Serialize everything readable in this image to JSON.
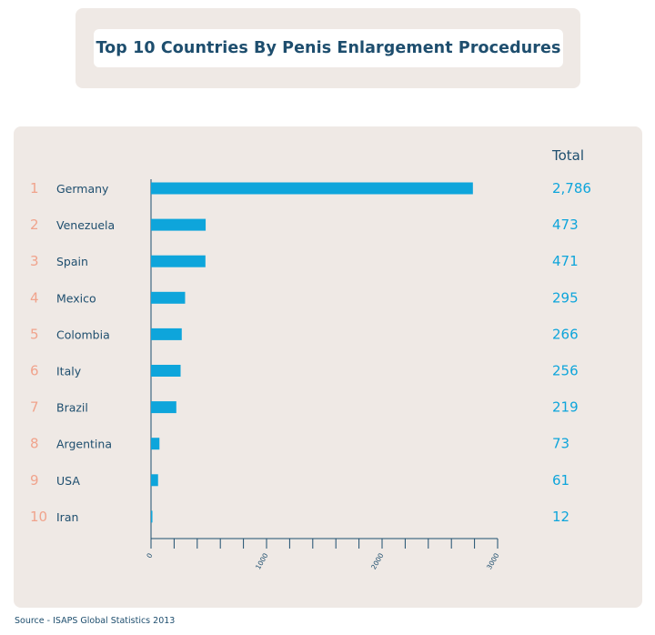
{
  "title": "Top 10 Countries By Penis Enlargement Procedures",
  "source": "Source - ISAPS Global Statistics 2013",
  "colors": {
    "bar": "#0ea5db",
    "rank": "#f0a38c",
    "label": "#1e4e6e",
    "value": "#0ea5db",
    "panel": "#efe9e5"
  },
  "chart_data": {
    "type": "bar",
    "orientation": "horizontal",
    "value_header": "Total",
    "ranks": [
      "1",
      "2",
      "3",
      "4",
      "5",
      "6",
      "7",
      "8",
      "9",
      "10"
    ],
    "categories": [
      "Germany",
      "Venezuela",
      "Spain",
      "Mexico",
      "Colombia",
      "Italy",
      "Brazil",
      "Argentina",
      "USA",
      "Iran"
    ],
    "values": [
      2786,
      473,
      471,
      295,
      266,
      256,
      219,
      73,
      61,
      12
    ],
    "value_labels": [
      "2,786",
      "473",
      "471",
      "295",
      "266",
      "256",
      "219",
      "73",
      "61",
      "12"
    ],
    "xlim": [
      0,
      3000
    ],
    "x_tick_labels": [
      "0",
      "1000",
      "2000",
      "3000"
    ],
    "x_tick_values": [
      0,
      1000,
      2000,
      3000
    ],
    "x_minor_step": 200,
    "grid": false
  }
}
